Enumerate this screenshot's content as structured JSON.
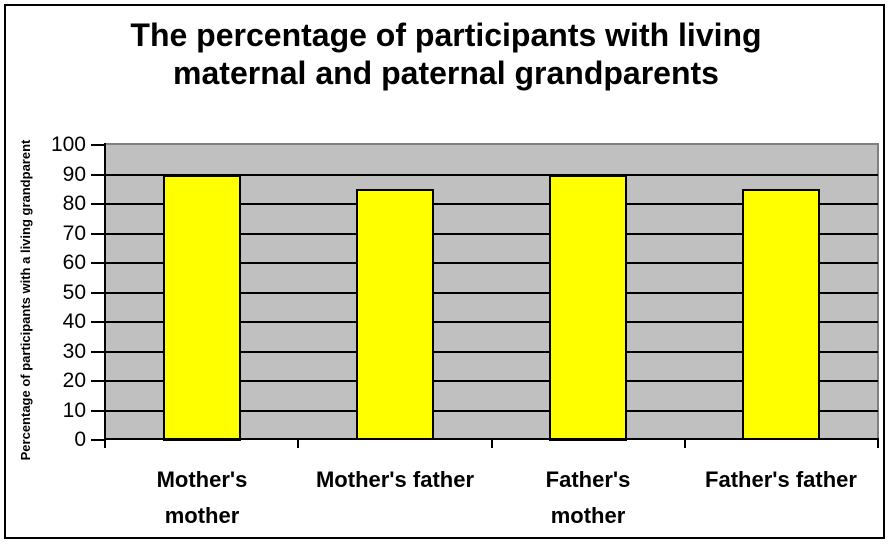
{
  "chart_data": {
    "type": "bar",
    "title": "The percentage of participants with living maternal and paternal grandparents",
    "title_lines": [
      "The percentage of participants with living",
      "maternal and paternal grandparents"
    ],
    "categories": [
      "Mother's mother",
      "Mother's father",
      "Father's mother",
      "Father's father"
    ],
    "category_label_lines": [
      [
        "Mother's",
        "mother"
      ],
      [
        "Mother's father"
      ],
      [
        "Father's",
        "mother"
      ],
      [
        "Father's father"
      ]
    ],
    "values": [
      90,
      85,
      90,
      85
    ],
    "xlabel": "",
    "ylabel": "Percentage of participants with a living grandparent",
    "ylim": [
      0,
      100
    ],
    "yticks": [
      0,
      10,
      20,
      30,
      40,
      50,
      60,
      70,
      80,
      90,
      100
    ],
    "grid": "horizontal",
    "legend": "none",
    "colors": {
      "bar_fill": "#FFFF00",
      "bar_border": "#000000",
      "plot_background": "#C0C0C0",
      "plot_border": "#808080",
      "gridline": "#000000",
      "axis": "#000000",
      "text": "#000000",
      "background": "#FFFFFF"
    }
  }
}
